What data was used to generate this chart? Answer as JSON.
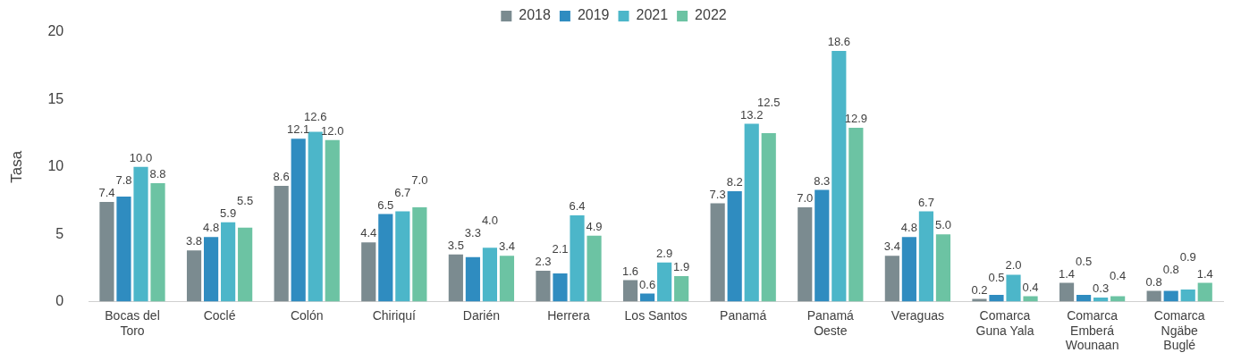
{
  "chart_data": {
    "type": "bar",
    "ylabel": "Tasa",
    "categories": [
      "Bocas del Toro",
      "Coclé",
      "Colón",
      "Chiriquí",
      "Darién",
      "Herrera",
      "Los Santos",
      "Panamá",
      "Panamá Oeste",
      "Veraguas",
      "Comarca Guna Yala",
      "Comarca Emberá Wounaan",
      "Comarca Ngäbe Buglé"
    ],
    "series": [
      {
        "name": "2018",
        "color": "#7b8b90",
        "values": [
          7.4,
          3.8,
          8.6,
          4.4,
          3.5,
          2.3,
          1.6,
          7.3,
          7.0,
          3.4,
          0.2,
          1.4,
          0.8
        ],
        "value_labels": [
          "7.4",
          "3.8",
          "8.6",
          "4.4",
          "3.5",
          "2.3",
          "1.6",
          "7.3",
          "7.0",
          "3.4",
          "0.2",
          "1.4",
          "0.8"
        ]
      },
      {
        "name": "2019",
        "color": "#2f8cc0",
        "values": [
          7.8,
          4.8,
          12.1,
          6.5,
          3.3,
          2.1,
          0.6,
          8.2,
          8.3,
          4.8,
          0.5,
          0.5,
          0.8
        ],
        "value_labels": [
          "7.8",
          "4.8",
          "12.1",
          "6.5",
          "3.3",
          "2.1",
          "0.6",
          "8.2",
          "8.3",
          "4.8",
          "0.5",
          "0.5",
          "0.8"
        ]
      },
      {
        "name": "2021",
        "color": "#4cb6c9",
        "values": [
          10.0,
          5.9,
          12.6,
          6.7,
          4.0,
          6.4,
          2.9,
          13.2,
          18.6,
          6.7,
          2.0,
          0.3,
          0.9
        ],
        "value_labels": [
          "10.0",
          "5.9",
          "12.6",
          "6.7",
          "4.0",
          "6.4",
          "2.9",
          "13.2",
          "18.6",
          "6.7",
          "2.0",
          "0.3",
          "0.9"
        ]
      },
      {
        "name": "2022",
        "color": "#6cc3a3",
        "values": [
          8.8,
          5.5,
          12.0,
          7.0,
          3.4,
          4.9,
          1.9,
          12.5,
          12.9,
          5.0,
          0.4,
          0.4,
          1.4
        ],
        "value_labels": [
          "8.8",
          "5.5",
          "12.0",
          "7.0",
          "3.4",
          "4.9",
          "1.9",
          "12.5",
          "12.9",
          "5.0",
          "0.4",
          "0.4",
          "1.4"
        ]
      }
    ],
    "ylim": [
      0,
      20
    ],
    "yticks": [
      0,
      5,
      10,
      15,
      20
    ],
    "grid": false,
    "legend": "top"
  }
}
